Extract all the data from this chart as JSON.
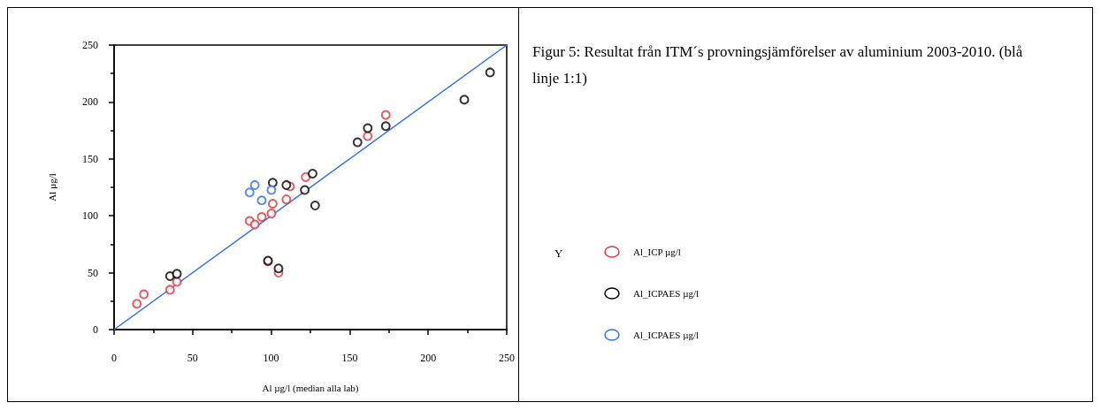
{
  "chart_data": {
    "type": "scatter",
    "title": "Figur 5: Resultat från ITM´s provningsjämförelser av aluminium 2003-2010. (blå linje 1:1)",
    "xlabel": "Al µg/l (median alla lab)",
    "ylabel": "Al µg/l",
    "legend_title": "Y",
    "legend": "right",
    "marker": "circle",
    "grid": false,
    "xlim": [
      0,
      250
    ],
    "xticks": [
      0,
      50,
      100,
      150,
      200,
      250
    ],
    "ylim": [
      0,
      250
    ],
    "yticks": [
      0,
      50,
      100,
      150,
      200,
      250
    ],
    "series": [
      {
        "name": "Al_ICP µg/l",
        "color": "#e8303f",
        "x": [
          14.5,
          19,
          35.6,
          40,
          86.3,
          89.6,
          94,
          100.2,
          101,
          109.7,
          112,
          122,
          161.5,
          173,
          98,
          104.7
        ],
        "values": [
          22.7,
          31,
          35,
          42,
          95.5,
          92.4,
          99,
          102,
          110.6,
          114.4,
          125.8,
          134,
          170,
          188.6,
          60,
          50
        ]
      },
      {
        "name": "Al_ICPAES µg/l",
        "color": "#000000",
        "x": [
          35.6,
          40,
          101,
          109.7,
          126.4,
          121.4,
          128,
          155,
          161.5,
          173,
          223,
          239.4,
          98,
          104.7
        ],
        "values": [
          47,
          49,
          129,
          127,
          137,
          122.7,
          109,
          164.6,
          177,
          178.8,
          202,
          226,
          60.5,
          53.8
        ]
      },
      {
        "name": "Al_ICPAES µg/l",
        "color": "#2f6ff0",
        "x": [
          89.6,
          86.3,
          94,
          100.2
        ],
        "values": [
          127,
          120.5,
          113.6,
          122.7
        ]
      },
      {
        "type": "line",
        "color": "#2f6ff0",
        "x": [
          0,
          250
        ],
        "values": [
          0,
          250
        ],
        "marker": "none",
        "line_style": "solid"
      }
    ]
  }
}
